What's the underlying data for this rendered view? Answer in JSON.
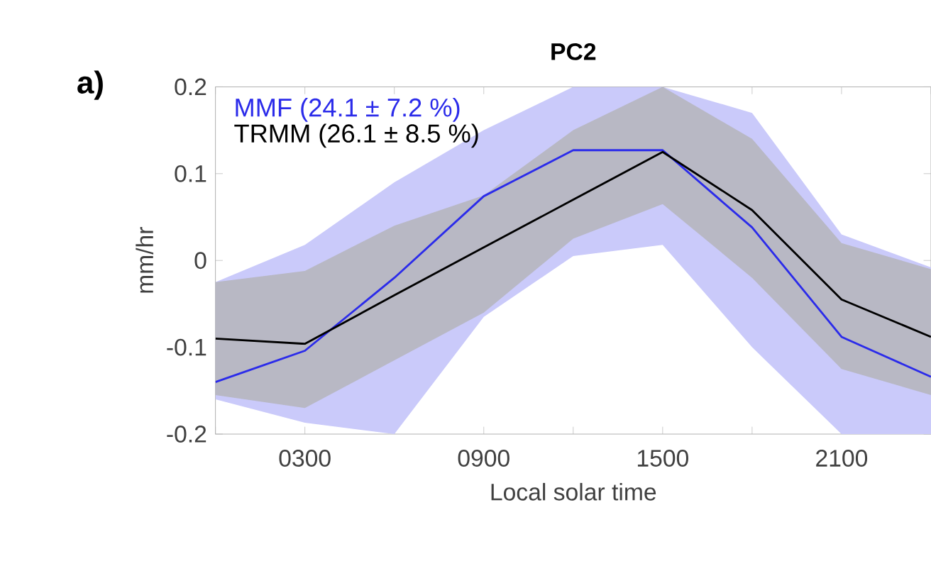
{
  "chart_data": {
    "type": "line",
    "title": "PC2",
    "xlabel": "Local solar time",
    "ylabel": "mm/hr",
    "annotations": [
      "a)"
    ],
    "categories": [
      null,
      "0300",
      null,
      "0900",
      null,
      "1500",
      null,
      "2100",
      null
    ],
    "ylim": [
      -0.2,
      0.2
    ],
    "yticks": [
      -0.2,
      -0.1,
      0,
      0.1,
      0.2
    ],
    "legend": "top left",
    "grid": false,
    "marker": "none",
    "line_style": "solid",
    "series": [
      {
        "name": "MMF (24.1 ± 7.2 %)",
        "color": "#2b2bea",
        "values": [
          -0.14,
          -0.104,
          -0.02,
          0.074,
          0.127,
          0.127,
          0.038,
          -0.088,
          -0.134
        ],
        "lower": [
          -0.16,
          -0.187,
          -0.2,
          -0.065,
          0.005,
          0.018,
          -0.1,
          -0.2,
          -0.2
        ],
        "upper": [
          -0.025,
          0.018,
          0.09,
          0.15,
          0.2,
          0.2,
          0.17,
          0.03,
          -0.008
        ]
      },
      {
        "name": "TRMM (26.1 ± 8.5 %)",
        "color": "#000000",
        "values": [
          -0.09,
          -0.096,
          -0.04,
          0.015,
          0.07,
          0.125,
          0.058,
          -0.045,
          -0.088
        ],
        "lower": [
          -0.155,
          -0.17,
          -0.115,
          -0.06,
          0.025,
          0.065,
          -0.02,
          -0.125,
          -0.155
        ],
        "upper": [
          -0.025,
          -0.012,
          0.04,
          0.075,
          0.15,
          0.2,
          0.14,
          0.02,
          -0.01
        ]
      }
    ]
  }
}
